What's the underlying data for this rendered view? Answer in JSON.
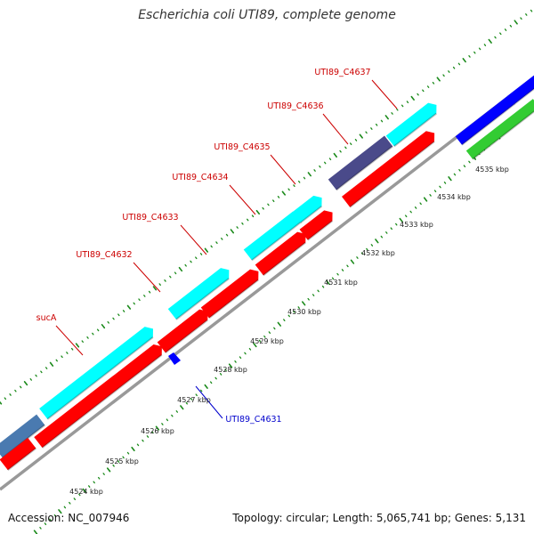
{
  "map": {
    "title": "Escherichia coli UTI89, complete genome",
    "accession": "Accession: NC_007946",
    "summary": "Topology: circular; Length: 5,065,741 bp; Genes: 5,131"
  },
  "colors": {
    "backbone": "#999999",
    "forward_gene": "#00ffff",
    "reverse_gene": "#ff0000",
    "forward_other": "#4a4a8a",
    "steelblue": "#4a7ab0",
    "blue": "#0000ff",
    "green": "#33cc33",
    "tick": "#1a8a1a",
    "label_red": "#cc0000",
    "label_blue": "#0000cc"
  },
  "gene_labels": [
    {
      "text": "UTI89_C4637",
      "color": "red"
    },
    {
      "text": "UTI89_C4636",
      "color": "red"
    },
    {
      "text": "UTI89_C4635",
      "color": "red"
    },
    {
      "text": "UTI89_C4634",
      "color": "red"
    },
    {
      "text": "UTI89_C4633",
      "color": "red"
    },
    {
      "text": "UTI89_C4632",
      "color": "red"
    },
    {
      "text": "sucA",
      "color": "red"
    },
    {
      "text": "UTI89_C4631",
      "color": "blue"
    }
  ],
  "ticks": [
    {
      "label": "4524 kbp"
    },
    {
      "label": "4525 kbp"
    },
    {
      "label": "4526 kbp"
    },
    {
      "label": "4527 kbp"
    },
    {
      "label": "4528 kbp"
    },
    {
      "label": "4529 kbp"
    },
    {
      "label": "4530 kbp"
    },
    {
      "label": "4531 kbp"
    },
    {
      "label": "4532 kbp"
    },
    {
      "label": "4533 kbp"
    },
    {
      "label": "4534 kbp"
    },
    {
      "label": "4535 kbp"
    }
  ]
}
